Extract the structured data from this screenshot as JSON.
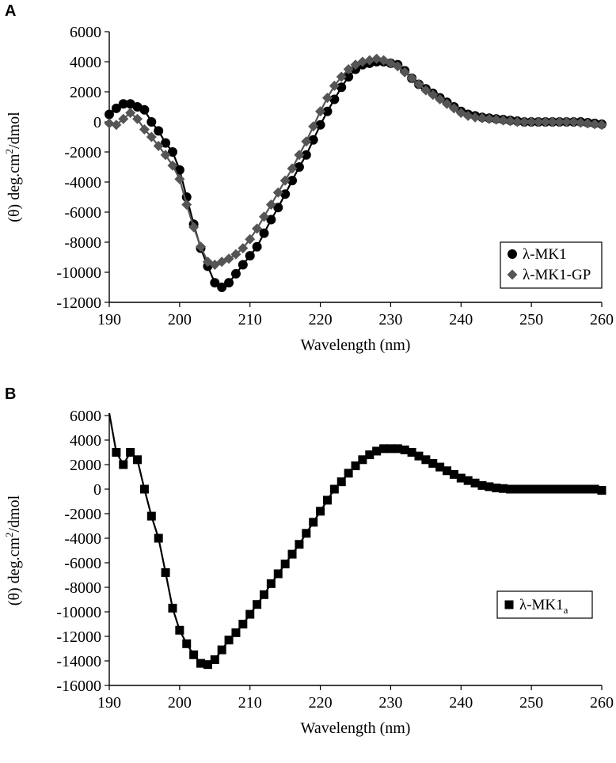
{
  "figure": {
    "panel_a_label": "A",
    "panel_b_label": "B"
  },
  "chart_data": [
    {
      "type": "line",
      "panel": "A",
      "xlabel": "Wavelength (nm)",
      "ylabel": "(θ) deg.cm²/dmol",
      "ylabel_parts": [
        "(θ) deg.cm",
        "2",
        "/dmol"
      ],
      "xlim": [
        190,
        260
      ],
      "ylim": [
        -12000,
        6000
      ],
      "xticks": [
        190,
        200,
        210,
        220,
        230,
        240,
        250,
        260
      ],
      "yticks": [
        6000,
        4000,
        2000,
        0,
        -2000,
        -4000,
        -6000,
        -8000,
        -10000,
        -12000
      ],
      "grid": false,
      "legend_position": "lower-right",
      "series": [
        {
          "name": "λ-MK1",
          "name_parts": [
            "λ-MK1",
            ""
          ],
          "marker": "circle",
          "color": "#000000",
          "x": [
            190,
            191,
            192,
            193,
            194,
            195,
            196,
            197,
            198,
            199,
            200,
            201,
            202,
            203,
            204,
            205,
            206,
            207,
            208,
            209,
            210,
            211,
            212,
            213,
            214,
            215,
            216,
            217,
            218,
            219,
            220,
            221,
            222,
            223,
            224,
            225,
            226,
            227,
            228,
            229,
            230,
            231,
            232,
            233,
            234,
            235,
            236,
            237,
            238,
            239,
            240,
            241,
            242,
            243,
            244,
            245,
            246,
            247,
            248,
            249,
            250,
            251,
            252,
            253,
            254,
            255,
            256,
            257,
            258,
            259,
            260
          ],
          "y": [
            500,
            900,
            1200,
            1200,
            1000,
            800,
            0,
            -600,
            -1400,
            -2000,
            -3200,
            -5000,
            -6800,
            -8400,
            -9600,
            -10700,
            -11000,
            -10700,
            -10100,
            -9500,
            -8900,
            -8300,
            -7400,
            -6500,
            -5700,
            -4800,
            -3900,
            -3000,
            -2200,
            -1200,
            -200,
            700,
            1500,
            2300,
            3000,
            3500,
            3800,
            3900,
            4000,
            4000,
            3900,
            3800,
            3400,
            2900,
            2500,
            2200,
            1900,
            1600,
            1300,
            1000,
            700,
            500,
            400,
            300,
            250,
            200,
            150,
            100,
            50,
            0,
            0,
            0,
            0,
            0,
            0,
            0,
            0,
            0,
            -50,
            -100,
            -150
          ]
        },
        {
          "name": "λ-MK1-GP",
          "name_parts": [
            "λ-MK1-GP",
            ""
          ],
          "marker": "diamond",
          "color": "#555555",
          "x": [
            190,
            191,
            192,
            193,
            194,
            195,
            196,
            197,
            198,
            199,
            200,
            201,
            202,
            203,
            204,
            205,
            206,
            207,
            208,
            209,
            210,
            211,
            212,
            213,
            214,
            215,
            216,
            217,
            218,
            219,
            220,
            221,
            222,
            223,
            224,
            225,
            226,
            227,
            228,
            229,
            230,
            231,
            232,
            233,
            234,
            235,
            236,
            237,
            238,
            239,
            240,
            241,
            242,
            243,
            244,
            245,
            246,
            247,
            248,
            249,
            250,
            251,
            252,
            253,
            254,
            255,
            256,
            257,
            258,
            259,
            260
          ],
          "y": [
            -100,
            -200,
            200,
            600,
            200,
            -500,
            -1000,
            -1600,
            -2200,
            -2900,
            -3800,
            -5500,
            -7000,
            -8300,
            -9300,
            -9500,
            -9300,
            -9100,
            -8800,
            -8400,
            -7800,
            -7100,
            -6300,
            -5500,
            -4700,
            -3900,
            -3100,
            -2200,
            -1300,
            -300,
            700,
            1600,
            2400,
            3000,
            3500,
            3800,
            4000,
            4100,
            4200,
            4100,
            3900,
            3700,
            3300,
            2900,
            2500,
            2100,
            1800,
            1500,
            1200,
            900,
            600,
            400,
            300,
            250,
            200,
            150,
            100,
            50,
            0,
            0,
            0,
            0,
            0,
            0,
            0,
            0,
            0,
            -50,
            -100,
            -150,
            -200
          ]
        }
      ]
    },
    {
      "type": "line",
      "panel": "B",
      "xlabel": "Wavelength (nm)",
      "ylabel": "(θ) deg.cm²/dmol",
      "ylabel_parts": [
        "(θ) deg.cm",
        "2",
        "/dmol"
      ],
      "xlim": [
        190,
        260
      ],
      "ylim": [
        -16000,
        6000
      ],
      "xticks": [
        190,
        200,
        210,
        220,
        230,
        240,
        250,
        260
      ],
      "yticks": [
        6000,
        4000,
        2000,
        0,
        -2000,
        -4000,
        -6000,
        -8000,
        -10000,
        -12000,
        -14000,
        -16000
      ],
      "grid": false,
      "legend_position": "right",
      "series": [
        {
          "name": "λ-MK1a",
          "name_parts": [
            "λ-MK1",
            "a"
          ],
          "marker": "square",
          "color": "#000000",
          "curve_start": [
            190,
            6200
          ],
          "x": [
            191,
            192,
            193,
            194,
            195,
            196,
            197,
            198,
            199,
            200,
            201,
            202,
            203,
            204,
            205,
            206,
            207,
            208,
            209,
            210,
            211,
            212,
            213,
            214,
            215,
            216,
            217,
            218,
            219,
            220,
            221,
            222,
            223,
            224,
            225,
            226,
            227,
            228,
            229,
            230,
            231,
            232,
            233,
            234,
            235,
            236,
            237,
            238,
            239,
            240,
            241,
            242,
            243,
            244,
            245,
            246,
            247,
            248,
            249,
            250,
            251,
            252,
            253,
            254,
            255,
            256,
            257,
            258,
            259,
            260
          ],
          "y": [
            3000,
            2000,
            3000,
            2400,
            0,
            -2200,
            -4000,
            -6800,
            -9700,
            -11500,
            -12600,
            -13500,
            -14200,
            -14300,
            -13900,
            -13100,
            -12300,
            -11700,
            -11000,
            -10200,
            -9400,
            -8600,
            -7700,
            -6900,
            -6100,
            -5300,
            -4500,
            -3600,
            -2700,
            -1800,
            -900,
            0,
            600,
            1300,
            1900,
            2400,
            2800,
            3100,
            3300,
            3300,
            3300,
            3200,
            3000,
            2700,
            2400,
            2100,
            1800,
            1500,
            1200,
            900,
            700,
            500,
            300,
            200,
            100,
            50,
            0,
            0,
            0,
            0,
            0,
            0,
            0,
            0,
            0,
            0,
            0,
            0,
            0,
            -100
          ]
        }
      ]
    }
  ]
}
